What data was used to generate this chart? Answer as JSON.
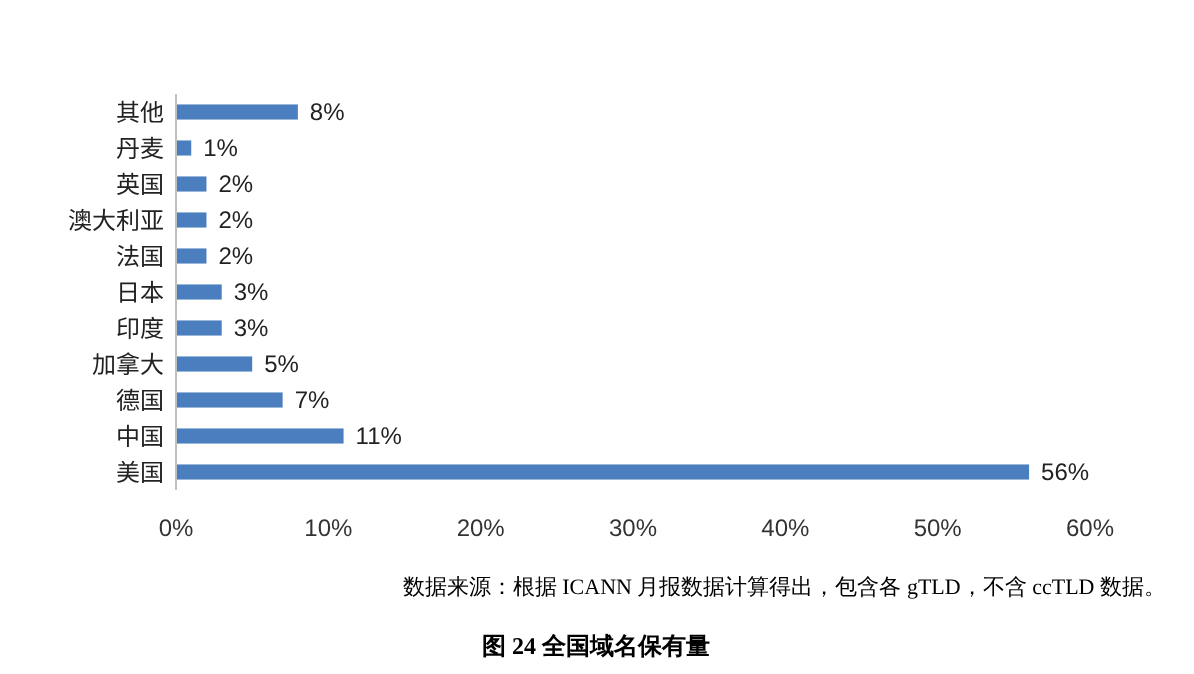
{
  "chart_data": {
    "type": "bar",
    "orientation": "horizontal",
    "title": "图 24  全国域名保有量",
    "annotations": [
      "数据来源：根据 ICANN 月报数据计算得出，包含各 gTLD，不含 ccTLD 数据。"
    ],
    "categories": [
      "其他",
      "丹麦",
      "英国",
      "澳大利亚",
      "法国",
      "日本",
      "印度",
      "加拿大",
      "德国",
      "中国",
      "美国"
    ],
    "values": [
      8,
      1,
      2,
      2,
      2,
      3,
      3,
      5,
      7,
      11,
      56
    ],
    "value_labels": [
      "8%",
      "1%",
      "2%",
      "2%",
      "2%",
      "3%",
      "3%",
      "5%",
      "7%",
      "11%",
      "56%"
    ],
    "color": "#4a7ebf",
    "xlim": [
      0,
      60
    ],
    "xticks": [
      {
        "value": 0,
        "label": "0%"
      },
      {
        "value": 10,
        "label": "10%"
      },
      {
        "value": 20,
        "label": "20%"
      },
      {
        "value": 30,
        "label": "30%"
      },
      {
        "value": 40,
        "label": "40%"
      },
      {
        "value": 50,
        "label": "50%"
      },
      {
        "value": 60,
        "label": "60%"
      }
    ],
    "grid": false
  }
}
